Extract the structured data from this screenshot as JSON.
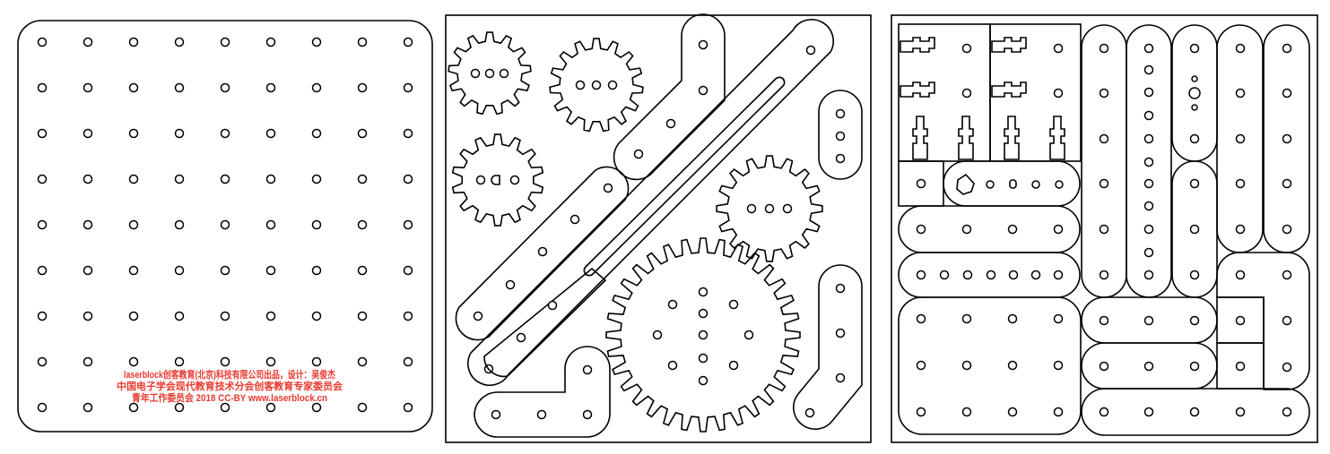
{
  "engraving": {
    "line1": "laserblock创客教育(北京)科技有限公司出品，设计：吴俊杰",
    "line2": "中国电子学会现代教育技术分会创客教育专家委员会",
    "line3": "青年工作委员会 2018 CC-BY www.laserblock.cn",
    "color": "#e8392e"
  },
  "panels": [
    {
      "name": "pegboard-panel"
    },
    {
      "name": "gears-and-beams-panel"
    },
    {
      "name": "connectors-and-bars-panel"
    }
  ]
}
